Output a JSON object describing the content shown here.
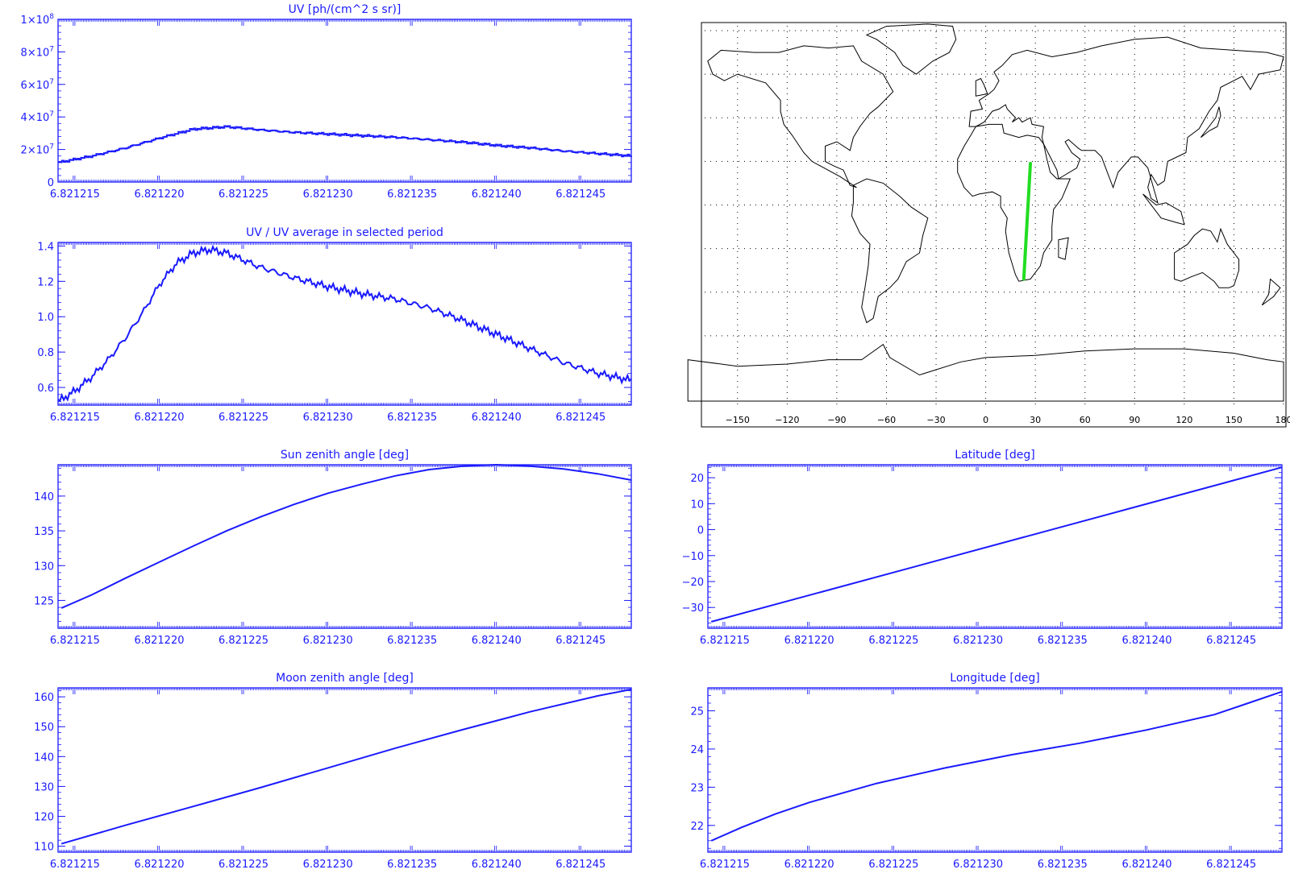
{
  "colors": {
    "axis": "#1a1aff",
    "line": "#1a1aff",
    "map": "#000000",
    "track": "#22dd22"
  },
  "chart_data": [
    {
      "id": "uv",
      "type": "line",
      "title": "UV [ph/(cm^2 s sr)]",
      "xlabel": "",
      "ylabel": "",
      "xlim": [
        6.821214,
        6.821248
      ],
      "ylim": [
        0,
        100000000
      ],
      "x_ticks": [
        "6.821215",
        "6.821220",
        "6.821225",
        "6.821230",
        "6.821235",
        "6.821240",
        "6.821245"
      ],
      "y_ticks": [
        {
          "v": 0,
          "t": "0"
        },
        {
          "v": 20000000,
          "t": "2×10",
          "sup": "7"
        },
        {
          "v": 40000000,
          "t": "4×10",
          "sup": "7"
        },
        {
          "v": 60000000,
          "t": "6×10",
          "sup": "7"
        },
        {
          "v": 80000000,
          "t": "8×10",
          "sup": "7"
        },
        {
          "v": 100000000,
          "t": "1×10",
          "sup": "8"
        }
      ],
      "x": [
        6.821214,
        6.821216,
        6.821218,
        6.82122,
        6.821222,
        6.821224,
        6.821226,
        6.821228,
        6.82123,
        6.821232,
        6.821234,
        6.821236,
        6.821238,
        6.82124,
        6.821242,
        6.821244,
        6.821246,
        6.821248
      ],
      "y": [
        12000000,
        16000000,
        21000000,
        27000000,
        32500000,
        34000000,
        32000000,
        30500000,
        29500000,
        28500000,
        27500000,
        26000000,
        24500000,
        22500000,
        21000000,
        19000000,
        17500000,
        16000000
      ]
    },
    {
      "id": "ratio",
      "type": "line",
      "title": "UV / UV average in selected period",
      "xlabel": "",
      "ylabel": "",
      "xlim": [
        6.821214,
        6.821248
      ],
      "ylim": [
        0.5,
        1.42
      ],
      "x_ticks": [
        "6.821215",
        "6.821220",
        "6.821225",
        "6.821230",
        "6.821235",
        "6.821240",
        "6.821245"
      ],
      "y_ticks": [
        {
          "v": 0.6,
          "t": "0.6"
        },
        {
          "v": 0.8,
          "t": "0.8"
        },
        {
          "v": 1.0,
          "t": "1.0"
        },
        {
          "v": 1.2,
          "t": "1.2"
        },
        {
          "v": 1.4,
          "t": "1.4"
        }
      ],
      "x": [
        6.821214,
        6.821215,
        6.821216,
        6.821217,
        6.821218,
        6.821219,
        6.82122,
        6.821221,
        6.821222,
        6.821223,
        6.821224,
        6.821225,
        6.821226,
        6.821228,
        6.82123,
        6.821232,
        6.821234,
        6.821236,
        6.821238,
        6.82124,
        6.821242,
        6.821244,
        6.821246,
        6.821248
      ],
      "y": [
        0.52,
        0.58,
        0.66,
        0.76,
        0.88,
        1.02,
        1.18,
        1.3,
        1.36,
        1.38,
        1.36,
        1.32,
        1.28,
        1.22,
        1.17,
        1.13,
        1.1,
        1.05,
        0.98,
        0.9,
        0.82,
        0.74,
        0.68,
        0.64
      ]
    },
    {
      "id": "sun",
      "type": "line",
      "title": "Sun zenith angle [deg]",
      "xlabel": "",
      "ylabel": "",
      "xlim": [
        6.821214,
        6.821248
      ],
      "ylim": [
        121,
        144.5
      ],
      "x_ticks": [
        "6.821215",
        "6.821220",
        "6.821225",
        "6.821230",
        "6.821235",
        "6.821240",
        "6.821245"
      ],
      "y_ticks": [
        {
          "v": 125,
          "t": "125"
        },
        {
          "v": 130,
          "t": "130"
        },
        {
          "v": 135,
          "t": "135"
        },
        {
          "v": 140,
          "t": "140"
        }
      ],
      "x": [
        6.8212142,
        6.821216,
        6.821218,
        6.82122,
        6.821222,
        6.821224,
        6.821226,
        6.821228,
        6.82123,
        6.821232,
        6.821234,
        6.821236,
        6.821238,
        6.82124,
        6.821242,
        6.821244,
        6.821246,
        6.821248
      ],
      "y": [
        123.9,
        125.8,
        128.2,
        130.5,
        132.8,
        135,
        137,
        138.8,
        140.4,
        141.7,
        142.9,
        143.8,
        144.3,
        144.5,
        144.3,
        143.9,
        143.2,
        142.3
      ]
    },
    {
      "id": "moon",
      "type": "line",
      "title": "Moon zenith angle [deg]",
      "xlabel": "",
      "ylabel": "",
      "xlim": [
        6.821214,
        6.821248
      ],
      "ylim": [
        108,
        163
      ],
      "x_ticks": [
        "6.821215",
        "6.821220",
        "6.821225",
        "6.821230",
        "6.821235",
        "6.821240",
        "6.821245"
      ],
      "y_ticks": [
        {
          "v": 110,
          "t": "110"
        },
        {
          "v": 120,
          "t": "120"
        },
        {
          "v": 130,
          "t": "130"
        },
        {
          "v": 140,
          "t": "140"
        },
        {
          "v": 150,
          "t": "150"
        },
        {
          "v": 160,
          "t": "160"
        }
      ],
      "x": [
        6.8212142,
        6.821218,
        6.821222,
        6.821226,
        6.82123,
        6.821234,
        6.821238,
        6.821242,
        6.821246,
        6.821248
      ],
      "y": [
        110.8,
        117,
        123.3,
        129.6,
        136.2,
        142.8,
        149,
        155,
        160.3,
        162.5
      ]
    },
    {
      "id": "lat",
      "type": "line",
      "title": "Latitude [deg]",
      "xlabel": "",
      "ylabel": "",
      "xlim": [
        6.821214,
        6.821248
      ],
      "ylim": [
        -38,
        25
      ],
      "x_ticks": [
        "6.821215",
        "6.821220",
        "6.821225",
        "6.821230",
        "6.821235",
        "6.821240",
        "6.821245"
      ],
      "y_ticks": [
        {
          "v": -30,
          "t": "−30"
        },
        {
          "v": -20,
          "t": "−20"
        },
        {
          "v": -10,
          "t": "−10"
        },
        {
          "v": 0,
          "t": "0"
        },
        {
          "v": 10,
          "t": "10"
        },
        {
          "v": 20,
          "t": "20"
        }
      ],
      "x": [
        6.8212142,
        6.821248
      ],
      "y": [
        -35.5,
        24
      ]
    },
    {
      "id": "lon",
      "type": "line",
      "title": "Longitude [deg]",
      "xlabel": "",
      "ylabel": "",
      "xlim": [
        6.821214,
        6.821248
      ],
      "ylim": [
        21.3,
        25.6
      ],
      "x_ticks": [
        "6.821215",
        "6.821220",
        "6.821225",
        "6.821230",
        "6.821235",
        "6.821240",
        "6.821245"
      ],
      "y_ticks": [
        {
          "v": 22,
          "t": "22"
        },
        {
          "v": 23,
          "t": "23"
        },
        {
          "v": 24,
          "t": "24"
        },
        {
          "v": 25,
          "t": "25"
        }
      ],
      "x": [
        6.8212142,
        6.821216,
        6.821218,
        6.82122,
        6.821224,
        6.821228,
        6.821232,
        6.821236,
        6.82124,
        6.821244,
        6.821246,
        6.821248
      ],
      "y": [
        21.6,
        21.95,
        22.3,
        22.6,
        23.1,
        23.5,
        23.85,
        24.15,
        24.5,
        24.9,
        25.2,
        25.5
      ]
    }
  ],
  "map": {
    "title": "",
    "lon_ticks": [
      "−150",
      "−120",
      "−90",
      "−60",
      "−30",
      "0",
      "30",
      "60",
      "90",
      "120",
      "150",
      "180"
    ],
    "track": {
      "lon_start": 23,
      "lat_start": -34,
      "lon_end": 27,
      "lat_end": 19
    }
  }
}
